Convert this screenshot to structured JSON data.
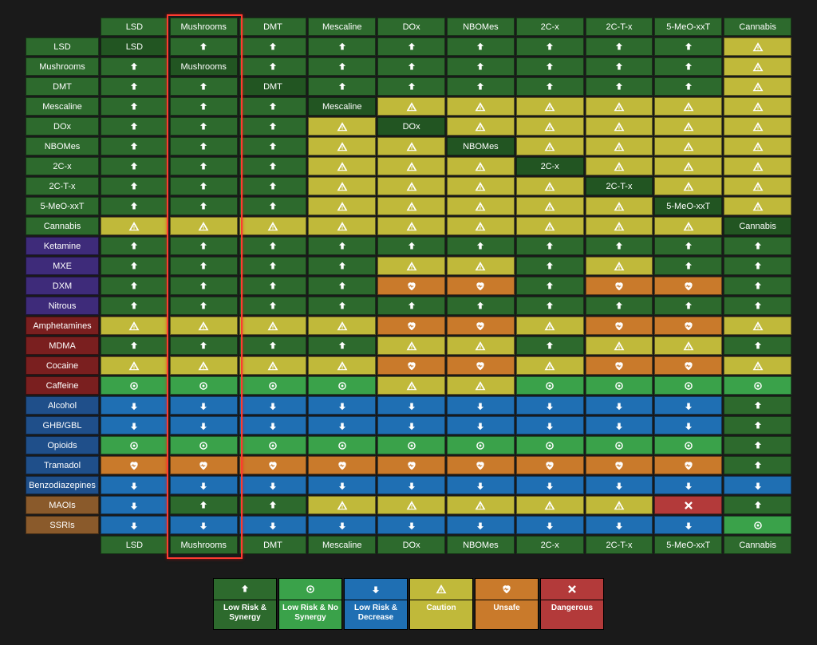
{
  "columns": [
    "LSD",
    "Mushrooms",
    "DMT",
    "Mescaline",
    "DOx",
    "NBOMes",
    "2C-x",
    "2C-T-x",
    "5-MeO-xxT",
    "Cannabis"
  ],
  "rows": [
    {
      "label": "LSD",
      "cat": "psy"
    },
    {
      "label": "Mushrooms",
      "cat": "psy"
    },
    {
      "label": "DMT",
      "cat": "psy"
    },
    {
      "label": "Mescaline",
      "cat": "psy"
    },
    {
      "label": "DOx",
      "cat": "psy"
    },
    {
      "label": "NBOMes",
      "cat": "psy"
    },
    {
      "label": "2C-x",
      "cat": "psy"
    },
    {
      "label": "2C-T-x",
      "cat": "psy"
    },
    {
      "label": "5-MeO-xxT",
      "cat": "psy"
    },
    {
      "label": "Cannabis",
      "cat": "psy"
    },
    {
      "label": "Ketamine",
      "cat": "disso"
    },
    {
      "label": "MXE",
      "cat": "disso"
    },
    {
      "label": "DXM",
      "cat": "disso"
    },
    {
      "label": "Nitrous",
      "cat": "disso"
    },
    {
      "label": "Amphetamines",
      "cat": "stim"
    },
    {
      "label": "MDMA",
      "cat": "stim"
    },
    {
      "label": "Cocaine",
      "cat": "stim"
    },
    {
      "label": "Caffeine",
      "cat": "stim"
    },
    {
      "label": "Alcohol",
      "cat": "dep"
    },
    {
      "label": "GHB/GBL",
      "cat": "dep"
    },
    {
      "label": "Opioids",
      "cat": "dep"
    },
    {
      "label": "Tramadol",
      "cat": "dep"
    },
    {
      "label": "Benzodiazepines",
      "cat": "dep"
    },
    {
      "label": "MAOIs",
      "cat": "misc"
    },
    {
      "label": "SSRIs",
      "cat": "misc"
    }
  ],
  "row_label_colors": {
    "psy": "#2d6a2d",
    "disso": "#3e2b7a",
    "stim": "#7a1f1f",
    "dep": "#1f4f8a",
    "misc": "#8a5a2b"
  },
  "header_color": "#2d6a2d",
  "cell_types": {
    "synergy": {
      "bg": "#2d6a2d",
      "icon": "up"
    },
    "nosynergy": {
      "bg": "#3aa24a",
      "icon": "dot"
    },
    "decrease": {
      "bg": "#1f6fb3",
      "icon": "down"
    },
    "caution": {
      "bg": "#c0b93a",
      "icon": "warn"
    },
    "unsafe": {
      "bg": "#c97a2b",
      "icon": "heart"
    },
    "dangerous": {
      "bg": "#b33a3a",
      "icon": "x"
    },
    "self": {
      "bg": "#225522",
      "icon": "label"
    }
  },
  "cells": [
    [
      "self",
      "synergy",
      "synergy",
      "synergy",
      "synergy",
      "synergy",
      "synergy",
      "synergy",
      "synergy",
      "caution"
    ],
    [
      "synergy",
      "self",
      "synergy",
      "synergy",
      "synergy",
      "synergy",
      "synergy",
      "synergy",
      "synergy",
      "caution"
    ],
    [
      "synergy",
      "synergy",
      "self",
      "synergy",
      "synergy",
      "synergy",
      "synergy",
      "synergy",
      "synergy",
      "caution"
    ],
    [
      "synergy",
      "synergy",
      "synergy",
      "self",
      "caution",
      "caution",
      "caution",
      "caution",
      "caution",
      "caution"
    ],
    [
      "synergy",
      "synergy",
      "synergy",
      "caution",
      "self",
      "caution",
      "caution",
      "caution",
      "caution",
      "caution"
    ],
    [
      "synergy",
      "synergy",
      "synergy",
      "caution",
      "caution",
      "self",
      "caution",
      "caution",
      "caution",
      "caution"
    ],
    [
      "synergy",
      "synergy",
      "synergy",
      "caution",
      "caution",
      "caution",
      "self",
      "caution",
      "caution",
      "caution"
    ],
    [
      "synergy",
      "synergy",
      "synergy",
      "caution",
      "caution",
      "caution",
      "caution",
      "self",
      "caution",
      "caution"
    ],
    [
      "synergy",
      "synergy",
      "synergy",
      "caution",
      "caution",
      "caution",
      "caution",
      "caution",
      "self",
      "caution"
    ],
    [
      "caution",
      "caution",
      "caution",
      "caution",
      "caution",
      "caution",
      "caution",
      "caution",
      "caution",
      "self"
    ],
    [
      "synergy",
      "synergy",
      "synergy",
      "synergy",
      "synergy",
      "synergy",
      "synergy",
      "synergy",
      "synergy",
      "synergy"
    ],
    [
      "synergy",
      "synergy",
      "synergy",
      "synergy",
      "caution",
      "caution",
      "synergy",
      "caution",
      "synergy",
      "synergy"
    ],
    [
      "synergy",
      "synergy",
      "synergy",
      "synergy",
      "unsafe",
      "unsafe",
      "synergy",
      "unsafe",
      "unsafe",
      "synergy"
    ],
    [
      "synergy",
      "synergy",
      "synergy",
      "synergy",
      "synergy",
      "synergy",
      "synergy",
      "synergy",
      "synergy",
      "synergy"
    ],
    [
      "caution",
      "caution",
      "caution",
      "caution",
      "unsafe",
      "unsafe",
      "caution",
      "unsafe",
      "unsafe",
      "caution"
    ],
    [
      "synergy",
      "synergy",
      "synergy",
      "synergy",
      "caution",
      "caution",
      "synergy",
      "caution",
      "caution",
      "synergy"
    ],
    [
      "caution",
      "caution",
      "caution",
      "caution",
      "unsafe",
      "unsafe",
      "caution",
      "unsafe",
      "unsafe",
      "caution"
    ],
    [
      "nosynergy",
      "nosynergy",
      "nosynergy",
      "nosynergy",
      "caution",
      "caution",
      "nosynergy",
      "nosynergy",
      "nosynergy",
      "nosynergy"
    ],
    [
      "decrease",
      "decrease",
      "decrease",
      "decrease",
      "decrease",
      "decrease",
      "decrease",
      "decrease",
      "decrease",
      "synergy"
    ],
    [
      "decrease",
      "decrease",
      "decrease",
      "decrease",
      "decrease",
      "decrease",
      "decrease",
      "decrease",
      "decrease",
      "synergy"
    ],
    [
      "nosynergy",
      "nosynergy",
      "nosynergy",
      "nosynergy",
      "nosynergy",
      "nosynergy",
      "nosynergy",
      "nosynergy",
      "nosynergy",
      "synergy"
    ],
    [
      "unsafe",
      "unsafe",
      "unsafe",
      "unsafe",
      "unsafe",
      "unsafe",
      "unsafe",
      "unsafe",
      "unsafe",
      "synergy"
    ],
    [
      "decrease",
      "decrease",
      "decrease",
      "decrease",
      "decrease",
      "decrease",
      "decrease",
      "decrease",
      "decrease",
      "decrease"
    ],
    [
      "decrease",
      "synergy",
      "synergy",
      "caution",
      "caution",
      "caution",
      "caution",
      "caution",
      "dangerous",
      "synergy"
    ],
    [
      "decrease",
      "decrease",
      "decrease",
      "decrease",
      "decrease",
      "decrease",
      "decrease",
      "decrease",
      "decrease",
      "nosynergy"
    ]
  ],
  "legend": [
    {
      "type": "synergy",
      "label": "Low Risk & Synergy"
    },
    {
      "type": "nosynergy",
      "label": "Low Risk & No Synergy"
    },
    {
      "type": "decrease",
      "label": "Low Risk & Decrease"
    },
    {
      "type": "caution",
      "label": "Caution"
    },
    {
      "type": "unsafe",
      "label": "Unsafe"
    },
    {
      "type": "dangerous",
      "label": "Dangerous"
    }
  ],
  "highlight_column": 1,
  "background": "#1a1a1a"
}
